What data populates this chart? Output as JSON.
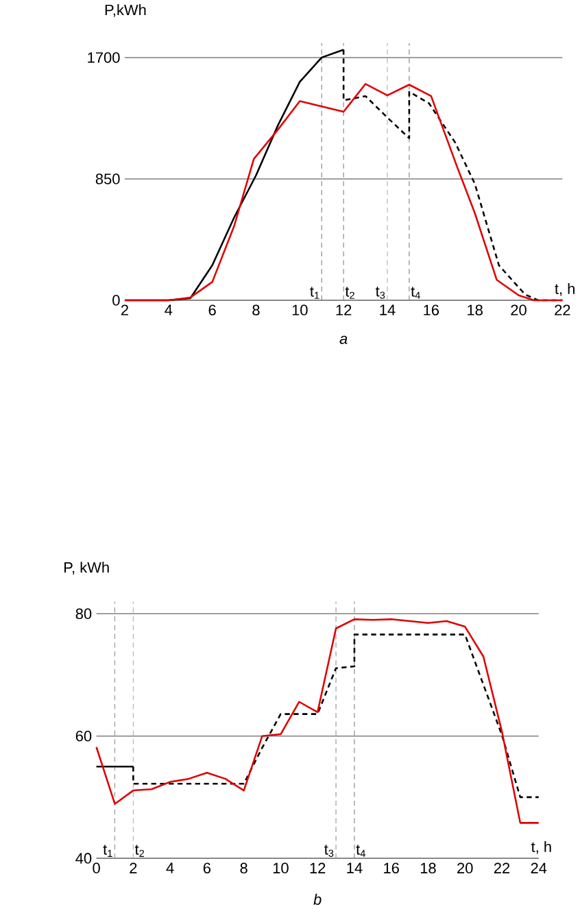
{
  "chart_data": [
    {
      "type": "line",
      "title": "a",
      "xlabel": "t, h",
      "ylabel": "P,kWh",
      "xlim": [
        2,
        22
      ],
      "ylim": [
        0,
        1800
      ],
      "xticks": [
        2,
        4,
        6,
        8,
        10,
        12,
        14,
        16,
        18,
        20,
        22
      ],
      "yticks": [
        0,
        850,
        1700
      ],
      "grid": "y",
      "series": [
        {
          "color": "#000000",
          "line_style": "solid",
          "x": [
            2,
            4,
            5,
            6,
            7,
            8,
            9,
            10,
            11,
            12
          ],
          "values": [
            0,
            0,
            15,
            245,
            580,
            875,
            1225,
            1530,
            1700,
            1755
          ]
        },
        {
          "color": "#000000",
          "line_style": "dashed",
          "x": [
            12,
            12,
            13,
            14,
            15,
            15,
            15.9,
            17.1,
            18,
            19.1,
            20.3,
            20.9,
            22
          ],
          "values": [
            1755,
            1400,
            1430,
            1280,
            1135,
            1460,
            1380,
            1105,
            815,
            245,
            40,
            0,
            0
          ]
        },
        {
          "color": "#e00000",
          "line_style": "solid",
          "x": [
            2,
            4,
            5,
            6,
            7,
            7.9,
            9,
            10,
            12,
            13,
            14,
            15,
            16,
            17.2,
            18,
            19,
            20,
            20.7,
            22
          ],
          "values": [
            0,
            0,
            20,
            128,
            520,
            990,
            1195,
            1395,
            1320,
            1515,
            1435,
            1510,
            1430,
            930,
            610,
            143,
            35,
            0,
            0
          ]
        }
      ],
      "ref_lines": [
        {
          "axis": "x",
          "value": 11,
          "label": "t$_{1}$",
          "color": "#808080",
          "line_style": "dashed"
        },
        {
          "axis": "x",
          "value": 12,
          "label": "t$_{2}$",
          "color": "#808080",
          "line_style": "dashed"
        },
        {
          "axis": "x",
          "value": 14,
          "label": "t$_{3}$",
          "color": "#b0b0b0",
          "line_style": "dashed"
        },
        {
          "axis": "x",
          "value": 15,
          "label": "t$_{4}$",
          "color": "#808080",
          "line_style": "dashed"
        }
      ]
    },
    {
      "type": "line",
      "title": "b",
      "xlabel": "t, h",
      "ylabel": "P, kWh",
      "xlim": [
        0,
        24
      ],
      "ylim": [
        40,
        82
      ],
      "xticks": [
        0,
        2,
        4,
        6,
        8,
        10,
        12,
        14,
        16,
        18,
        20,
        22,
        24
      ],
      "yticks": [
        40,
        60,
        80
      ],
      "grid": "y",
      "series": [
        {
          "color": "#000000",
          "line_style": "solid",
          "x": [
            0,
            2
          ],
          "values": [
            55.0,
            55.0
          ]
        },
        {
          "color": "#000000",
          "line_style": "dashed",
          "x": [
            2,
            2,
            8,
            9,
            10,
            12,
            13,
            14,
            14,
            20,
            21,
            22,
            23,
            24
          ],
          "values": [
            55.0,
            52.2,
            52.2,
            58.1,
            63.6,
            63.6,
            71.1,
            71.4,
            76.6,
            76.6,
            68.4,
            60.2,
            50.0,
            50.0
          ]
        },
        {
          "color": "#e00000",
          "line_style": "solid",
          "x": [
            0,
            1,
            2,
            3,
            4,
            5,
            6,
            7,
            8,
            9,
            10,
            11,
            12,
            13,
            14,
            15,
            16,
            18,
            19,
            20,
            21,
            22,
            23,
            24
          ],
          "values": [
            58.2,
            48.9,
            51.1,
            51.3,
            52.5,
            53,
            54,
            53,
            51.1,
            60,
            60.3,
            65.6,
            63.9,
            77.6,
            79.1,
            79,
            79.1,
            78.5,
            78.8,
            77.9,
            73,
            60.8,
            45.8,
            45.8
          ]
        }
      ],
      "ref_lines": [
        {
          "axis": "x",
          "value": 1,
          "label": "t$_{1}$",
          "color": "#909090",
          "line_style": "dashed"
        },
        {
          "axis": "x",
          "value": 2,
          "label": "t$_{2}$",
          "color": "#b0b0b0",
          "line_style": "dashed"
        },
        {
          "axis": "x",
          "value": 13,
          "label": "t$_{3}$",
          "color": "#909090",
          "line_style": "dashed"
        },
        {
          "axis": "x",
          "value": 14,
          "label": "t$_{4}$",
          "color": "#808080",
          "line_style": "dashed"
        }
      ]
    }
  ]
}
